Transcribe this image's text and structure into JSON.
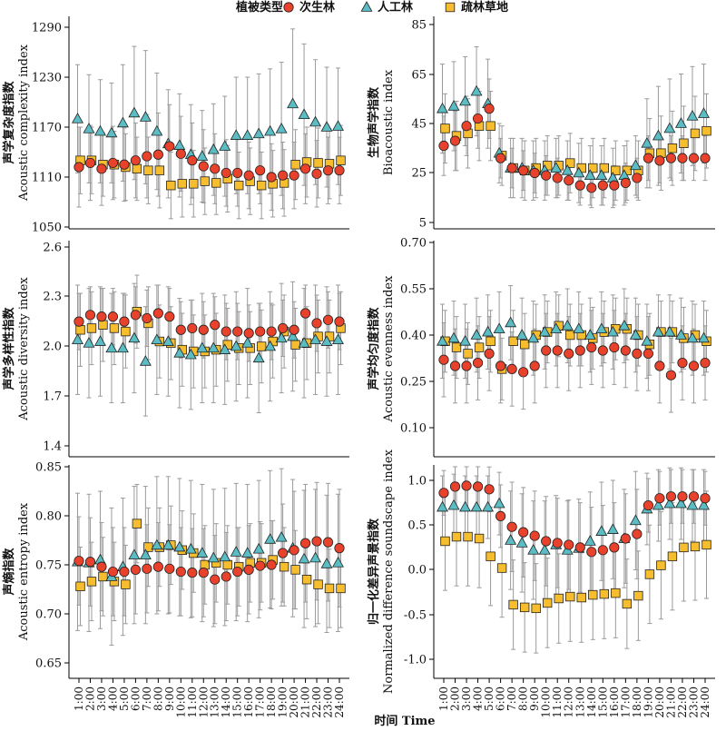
{
  "legend": {
    "title": "植被类型",
    "placement": "top-center",
    "items": [
      {
        "name": "次生林",
        "shape": "circle",
        "color": "#e8412c"
      },
      {
        "name": "人工林",
        "shape": "triangle",
        "color": "#5bbcc4"
      },
      {
        "name": "疏林草地",
        "shape": "square",
        "color": "#f6be2e"
      }
    ]
  },
  "xlabel": "时间 Time",
  "categories": [
    "1:00",
    "2:00",
    "3:00",
    "4:00",
    "5:00",
    "6:00",
    "7:00",
    "8:00",
    "9:00",
    "10:00",
    "11:00",
    "12:00",
    "13:00",
    "14:00",
    "15:00",
    "16:00",
    "17:00",
    "18:00",
    "19:00",
    "20:00",
    "21:00",
    "22:00",
    "23:00",
    "24:00"
  ],
  "chart_data": [
    {
      "type": "scatter",
      "ylabel_cn": "声学复杂度指数",
      "ylabel_en": "Acoustic complexity index",
      "ylim": [
        1045,
        1300
      ],
      "yticks": [
        "1050",
        "1110",
        "1170",
        "1230",
        "1290"
      ],
      "series": [
        {
          "name": "次生林",
          "values": [
            1122,
            1127,
            1120,
            1127,
            1125,
            1130,
            1135,
            1137,
            1147,
            1138,
            1130,
            1123,
            1120,
            1115,
            1115,
            1112,
            1118,
            1110,
            1112,
            1112,
            1120,
            1114,
            1118,
            1118
          ],
          "err": [
            48,
            45,
            44,
            44,
            44,
            45,
            50,
            50,
            50,
            45,
            45,
            44,
            42,
            40,
            40,
            40,
            40,
            40,
            40,
            40,
            42,
            40,
            40,
            40
          ]
        },
        {
          "name": "人工林",
          "values": [
            1180,
            1168,
            1165,
            1163,
            1175,
            1187,
            1182,
            1165,
            1150,
            1148,
            1137,
            1135,
            1143,
            1147,
            1160,
            1160,
            1162,
            1165,
            1168,
            1198,
            1185,
            1176,
            1170,
            1171
          ],
          "err": [
            65,
            65,
            62,
            60,
            70,
            80,
            80,
            70,
            65,
            62,
            60,
            55,
            55,
            60,
            70,
            70,
            72,
            75,
            80,
            90,
            85,
            75,
            72,
            70
          ]
        },
        {
          "name": "疏林草地",
          "values": [
            1130,
            1130,
            1125,
            1125,
            1122,
            1120,
            1118,
            1118,
            1100,
            1102,
            1102,
            1105,
            1103,
            1108,
            1100,
            1105,
            1100,
            1102,
            1103,
            1125,
            1128,
            1127,
            1126,
            1130
          ],
          "err": [
            40,
            40,
            38,
            40,
            40,
            38,
            40,
            45,
            40,
            40,
            40,
            40,
            38,
            40,
            40,
            40,
            40,
            40,
            40,
            42,
            42,
            42,
            42,
            42
          ]
        }
      ]
    },
    {
      "type": "scatter",
      "ylabel_cn": "生物声学指数",
      "ylabel_en": "Bioacoustic index",
      "ylim": [
        3,
        95
      ],
      "yticks": [
        "5",
        "25",
        "45",
        "65",
        "85"
      ],
      "series": [
        {
          "name": "次生林",
          "values": [
            36,
            38,
            44,
            47,
            51,
            31,
            27,
            26,
            25,
            24,
            23,
            22,
            20,
            19,
            20,
            20,
            21,
            23,
            31,
            30,
            31,
            31,
            31,
            31
          ],
          "err": [
            12,
            12,
            12,
            12,
            12,
            8,
            8,
            8,
            8,
            8,
            8,
            8,
            8,
            8,
            8,
            8,
            8,
            8,
            9,
            9,
            9,
            9,
            9,
            9
          ]
        },
        {
          "name": "人工林",
          "values": [
            51,
            52,
            54,
            58,
            53,
            33,
            27,
            27,
            26,
            26,
            27,
            26,
            25,
            24,
            24,
            23,
            24,
            28,
            37,
            40,
            43,
            45,
            48,
            49
          ],
          "err": [
            18,
            18,
            18,
            18,
            18,
            12,
            12,
            12,
            12,
            12,
            12,
            12,
            12,
            12,
            12,
            12,
            12,
            12,
            18,
            20,
            20,
            20,
            20,
            20
          ]
        },
        {
          "name": "疏林草地",
          "values": [
            43,
            40,
            41,
            44,
            44,
            32,
            27,
            26,
            27,
            28,
            28,
            29,
            27,
            27,
            27,
            26,
            26,
            26,
            33,
            33,
            35,
            37,
            41,
            42
          ],
          "err": [
            14,
            14,
            14,
            14,
            14,
            12,
            12,
            12,
            12,
            12,
            12,
            12,
            12,
            12,
            12,
            12,
            12,
            12,
            14,
            15,
            15,
            15,
            15,
            15
          ]
        }
      ]
    },
    {
      "type": "scatter",
      "ylabel_cn": "声学多样性指数",
      "ylabel_en": "Acoustic diversity index",
      "ylim": [
        1.35,
        2.62
      ],
      "yticks": [
        "1.4",
        "1.7",
        "2.0",
        "2.3",
        "2.6"
      ],
      "series": [
        {
          "name": "次生林",
          "values": [
            2.15,
            2.19,
            2.18,
            2.18,
            2.15,
            2.19,
            2.17,
            2.2,
            2.18,
            2.1,
            2.11,
            2.1,
            2.13,
            2.09,
            2.09,
            2.08,
            2.09,
            2.09,
            2.11,
            2.1,
            2.2,
            2.14,
            2.16,
            2.15
          ],
          "err": [
            0.17,
            0.17,
            0.17,
            0.17,
            0.17,
            0.17,
            0.17,
            0.17,
            0.17,
            0.17,
            0.17,
            0.17,
            0.17,
            0.17,
            0.17,
            0.17,
            0.17,
            0.17,
            0.17,
            0.17,
            0.17,
            0.17,
            0.17,
            0.17
          ]
        },
        {
          "name": "人工林",
          "values": [
            2.04,
            2.02,
            2.03,
            1.99,
            1.99,
            2.05,
            1.91,
            2.04,
            2.03,
            1.96,
            1.95,
            1.99,
            1.99,
            1.98,
            2.0,
            2.02,
            1.93,
            2.0,
            2.05,
            2.06,
            2.02,
            2.04,
            2.03,
            2.04
          ],
          "err": [
            0.33,
            0.33,
            0.33,
            0.33,
            0.33,
            0.33,
            0.33,
            0.33,
            0.33,
            0.33,
            0.33,
            0.33,
            0.33,
            0.33,
            0.33,
            0.33,
            0.33,
            0.33,
            0.33,
            0.33,
            0.33,
            0.33,
            0.33,
            0.33
          ]
        },
        {
          "name": "疏林草地",
          "values": [
            2.1,
            2.11,
            2.13,
            2.11,
            2.09,
            2.21,
            2.14,
            2.03,
            2.02,
            1.98,
            1.97,
            1.97,
            1.98,
            2.01,
            1.99,
            1.99,
            2.0,
            2.03,
            2.09,
            2.01,
            2.02,
            2.06,
            2.06,
            2.11
          ],
          "err": [
            0.22,
            0.22,
            0.22,
            0.22,
            0.22,
            0.22,
            0.22,
            0.22,
            0.22,
            0.22,
            0.22,
            0.22,
            0.22,
            0.22,
            0.22,
            0.22,
            0.22,
            0.22,
            0.22,
            0.22,
            0.22,
            0.22,
            0.22,
            0.22
          ]
        }
      ]
    },
    {
      "type": "scatter",
      "ylabel_cn": "声学均匀度指数",
      "ylabel_en": "Acoustic evenness index",
      "ylim": [
        0.05,
        0.73
      ],
      "yticks": [
        "0.10",
        "0.25",
        "0.40",
        "0.55",
        "0.70"
      ],
      "series": [
        {
          "name": "次生林",
          "values": [
            0.32,
            0.3,
            0.3,
            0.31,
            0.34,
            0.3,
            0.29,
            0.28,
            0.3,
            0.35,
            0.35,
            0.34,
            0.35,
            0.36,
            0.35,
            0.36,
            0.35,
            0.34,
            0.34,
            0.3,
            0.27,
            0.31,
            0.3,
            0.31
          ],
          "err": [
            0.12,
            0.12,
            0.12,
            0.12,
            0.12,
            0.12,
            0.12,
            0.12,
            0.12,
            0.12,
            0.12,
            0.12,
            0.12,
            0.12,
            0.12,
            0.12,
            0.12,
            0.12,
            0.12,
            0.12,
            0.12,
            0.12,
            0.12,
            0.12
          ]
        },
        {
          "name": "人工林",
          "values": [
            0.38,
            0.39,
            0.38,
            0.4,
            0.41,
            0.42,
            0.44,
            0.4,
            0.39,
            0.41,
            0.42,
            0.43,
            0.42,
            0.4,
            0.42,
            0.41,
            0.43,
            0.4,
            0.38,
            0.41,
            0.41,
            0.4,
            0.39,
            0.39
          ],
          "err": [
            0.12,
            0.12,
            0.12,
            0.12,
            0.12,
            0.12,
            0.12,
            0.12,
            0.12,
            0.12,
            0.12,
            0.12,
            0.12,
            0.12,
            0.12,
            0.12,
            0.12,
            0.12,
            0.12,
            0.12,
            0.12,
            0.12,
            0.12,
            0.12
          ]
        },
        {
          "name": "疏林草地",
          "values": [
            0.38,
            0.36,
            0.34,
            0.36,
            0.38,
            0.29,
            0.38,
            0.37,
            0.4,
            0.41,
            0.43,
            0.4,
            0.4,
            0.39,
            0.41,
            0.42,
            0.42,
            0.4,
            0.37,
            0.41,
            0.41,
            0.39,
            0.4,
            0.38
          ],
          "err": [
            0.1,
            0.1,
            0.1,
            0.1,
            0.1,
            0.1,
            0.1,
            0.1,
            0.1,
            0.1,
            0.1,
            0.1,
            0.1,
            0.1,
            0.1,
            0.1,
            0.1,
            0.1,
            0.1,
            0.1,
            0.1,
            0.1,
            0.1,
            0.1
          ]
        }
      ]
    },
    {
      "type": "scatter",
      "ylabel_cn": "声熵指数",
      "ylabel_en": "Acoustic entropy index",
      "ylim": [
        0.64,
        0.87
      ],
      "yticks": [
        "0.65",
        "0.70",
        "0.75",
        "0.80",
        "0.85"
      ],
      "series": [
        {
          "name": "次生林",
          "values": [
            0.754,
            0.753,
            0.748,
            0.743,
            0.743,
            0.745,
            0.746,
            0.748,
            0.746,
            0.743,
            0.742,
            0.742,
            0.735,
            0.738,
            0.743,
            0.745,
            0.749,
            0.75,
            0.762,
            0.765,
            0.772,
            0.774,
            0.773,
            0.767
          ],
          "err": [
            0.045,
            0.045,
            0.045,
            0.045,
            0.045,
            0.045,
            0.045,
            0.045,
            0.045,
            0.045,
            0.045,
            0.045,
            0.045,
            0.045,
            0.045,
            0.045,
            0.045,
            0.045,
            0.05,
            0.06,
            0.06,
            0.06,
            0.06,
            0.06
          ]
        },
        {
          "name": "人工林",
          "values": [
            0.753,
            0.752,
            0.755,
            0.738,
            0.748,
            0.76,
            0.76,
            0.77,
            0.77,
            0.768,
            0.766,
            0.762,
            0.757,
            0.758,
            0.763,
            0.762,
            0.766,
            0.776,
            0.778,
            0.767,
            0.756,
            0.757,
            0.751,
            0.752
          ],
          "err": [
            0.07,
            0.07,
            0.07,
            0.07,
            0.07,
            0.07,
            0.07,
            0.07,
            0.07,
            0.07,
            0.07,
            0.07,
            0.07,
            0.07,
            0.07,
            0.07,
            0.07,
            0.07,
            0.07,
            0.07,
            0.07,
            0.07,
            0.07,
            0.07
          ]
        },
        {
          "name": "疏林草地",
          "values": [
            0.728,
            0.733,
            0.738,
            0.733,
            0.73,
            0.792,
            0.768,
            0.768,
            0.77,
            0.765,
            0.762,
            0.75,
            0.752,
            0.75,
            0.748,
            0.752,
            0.752,
            0.755,
            0.748,
            0.745,
            0.735,
            0.73,
            0.726,
            0.726
          ],
          "err": [
            0.04,
            0.04,
            0.04,
            0.04,
            0.04,
            0.04,
            0.04,
            0.04,
            0.04,
            0.04,
            0.04,
            0.04,
            0.04,
            0.04,
            0.04,
            0.04,
            0.04,
            0.04,
            0.04,
            0.04,
            0.04,
            0.04,
            0.04,
            0.04
          ]
        }
      ]
    },
    {
      "type": "scatter",
      "ylabel_cn": "归一化差异声景指数",
      "ylabel_en": "Normalized difference soundscape index",
      "ylim": [
        -1.12,
        1.2
      ],
      "yticks": [
        "-1.0",
        "-0.5",
        "0.0",
        "0.5",
        "1.0"
      ],
      "series": [
        {
          "name": "次生林",
          "values": [
            0.86,
            0.93,
            0.94,
            0.93,
            0.9,
            0.6,
            0.48,
            0.42,
            0.38,
            0.32,
            0.3,
            0.28,
            0.25,
            0.2,
            0.22,
            0.25,
            0.35,
            0.4,
            0.72,
            0.8,
            0.82,
            0.82,
            0.82,
            0.8
          ],
          "err": [
            0.25,
            0.25,
            0.25,
            0.25,
            0.25,
            0.35,
            0.5,
            0.5,
            0.5,
            0.5,
            0.5,
            0.5,
            0.5,
            0.5,
            0.5,
            0.5,
            0.5,
            0.5,
            0.3,
            0.3,
            0.3,
            0.3,
            0.3,
            0.3
          ]
        },
        {
          "name": "人工林",
          "values": [
            0.7,
            0.72,
            0.7,
            0.7,
            0.7,
            0.74,
            0.33,
            0.3,
            0.22,
            0.22,
            0.28,
            0.22,
            0.24,
            0.32,
            0.43,
            0.45,
            0.35,
            0.55,
            0.68,
            0.72,
            0.74,
            0.74,
            0.72,
            0.72
          ],
          "err": [
            0.35,
            0.35,
            0.35,
            0.35,
            0.35,
            0.35,
            0.55,
            0.55,
            0.55,
            0.55,
            0.55,
            0.55,
            0.55,
            0.55,
            0.55,
            0.55,
            0.55,
            0.55,
            0.4,
            0.4,
            0.4,
            0.4,
            0.4,
            0.4
          ]
        },
        {
          "name": "疏林草地",
          "values": [
            0.32,
            0.37,
            0.37,
            0.35,
            0.15,
            0.02,
            -0.39,
            -0.42,
            -0.43,
            -0.37,
            -0.32,
            -0.3,
            -0.31,
            -0.28,
            -0.27,
            -0.26,
            -0.38,
            -0.29,
            -0.05,
            0.05,
            0.15,
            0.25,
            0.26,
            0.28
          ],
          "err": [
            0.55,
            0.55,
            0.55,
            0.55,
            0.55,
            0.55,
            0.5,
            0.5,
            0.5,
            0.5,
            0.5,
            0.5,
            0.5,
            0.5,
            0.5,
            0.5,
            0.5,
            0.5,
            0.55,
            0.6,
            0.6,
            0.6,
            0.6,
            0.6
          ]
        }
      ]
    }
  ]
}
